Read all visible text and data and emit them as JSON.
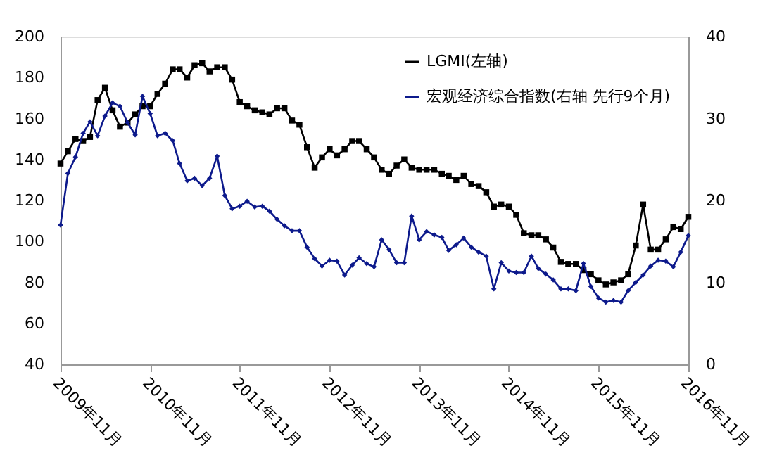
{
  "chart_data": {
    "type": "line",
    "x": [
      "2009-11",
      "2009-12",
      "2010-01",
      "2010-02",
      "2010-03",
      "2010-04",
      "2010-05",
      "2010-06",
      "2010-07",
      "2010-08",
      "2010-09",
      "2010-10",
      "2010-11",
      "2010-12",
      "2011-01",
      "2011-02",
      "2011-03",
      "2011-04",
      "2011-05",
      "2011-06",
      "2011-07",
      "2011-08",
      "2011-09",
      "2011-10",
      "2011-11",
      "2011-12",
      "2012-01",
      "2012-02",
      "2012-03",
      "2012-04",
      "2012-05",
      "2012-06",
      "2012-07",
      "2012-08",
      "2012-09",
      "2012-10",
      "2012-11",
      "2012-12",
      "2013-01",
      "2013-02",
      "2013-03",
      "2013-04",
      "2013-05",
      "2013-06",
      "2013-07",
      "2013-08",
      "2013-09",
      "2013-10",
      "2013-11",
      "2013-12",
      "2014-01",
      "2014-02",
      "2014-03",
      "2014-04",
      "2014-05",
      "2014-06",
      "2014-07",
      "2014-08",
      "2014-09",
      "2014-10",
      "2014-11",
      "2014-12",
      "2015-01",
      "2015-02",
      "2015-03",
      "2015-04",
      "2015-05",
      "2015-06",
      "2015-07",
      "2015-08",
      "2015-09",
      "2015-10",
      "2015-11",
      "2015-12",
      "2016-01",
      "2016-02",
      "2016-03",
      "2016-04",
      "2016-05",
      "2016-06",
      "2016-07",
      "2016-08",
      "2016-09",
      "2016-10",
      "2016-11"
    ],
    "series": [
      {
        "name": "LGMI(左轴)",
        "color": "#000000",
        "marker": "square",
        "values": [
          138,
          144,
          150,
          149,
          151,
          169,
          175,
          164,
          156,
          158,
          162,
          166,
          166,
          172,
          177,
          184,
          184,
          180,
          186,
          187,
          183,
          185,
          185,
          179,
          168,
          166,
          164,
          163,
          162,
          165,
          165,
          159,
          157,
          146,
          136,
          141,
          145,
          142,
          145,
          149,
          149,
          145,
          141,
          135,
          133,
          137,
          140,
          136,
          135,
          135,
          135,
          133,
          132,
          130,
          132,
          128,
          127,
          124,
          117,
          118,
          117,
          113,
          104,
          103,
          103,
          101,
          97,
          90,
          89,
          89,
          86,
          84,
          81,
          79,
          80,
          81,
          84,
          98,
          118,
          96,
          96,
          101,
          107,
          106,
          112
        ]
      },
      {
        "name": "宏观经济综合指数(右轴 先行9个月)",
        "color": "#0d1a8c",
        "marker": "diamond",
        "axis": "y2",
        "values": [
          17,
          23.3,
          25.3,
          28.2,
          29.6,
          27.9,
          30.3,
          31.9,
          31.5,
          29.5,
          28,
          32.7,
          30.6,
          27.9,
          28.2,
          27.3,
          24.5,
          22.4,
          22.7,
          21.8,
          22.7,
          25.4,
          20.6,
          19,
          19.3,
          19.9,
          19.2,
          19.3,
          18.7,
          17.7,
          16.9,
          16.3,
          16.3,
          14.3,
          12.9,
          12,
          12.7,
          12.6,
          10.9,
          12.1,
          13,
          12.3,
          11.9,
          15.2,
          14,
          12.4,
          12.4,
          18.1,
          15.2,
          16.2,
          15.8,
          15.5,
          13.9,
          14.6,
          15.4,
          14.3,
          13.7,
          13.2,
          9.2,
          12.4,
          11.4,
          11.2,
          11.2,
          13.2,
          11.7,
          11,
          10.3,
          9.2,
          9.2,
          9,
          12.3,
          9.5,
          8.1,
          7.6,
          7.8,
          7.6,
          9,
          10,
          10.9,
          12,
          12.7,
          12.6,
          11.9,
          13.7,
          15.7
        ]
      }
    ],
    "xlim": [
      "2009-11",
      "2016-11"
    ],
    "xticks": [
      {
        "value": "2009-11",
        "label": "2009年11月"
      },
      {
        "value": "2010-11",
        "label": "2010年11月"
      },
      {
        "value": "2011-11",
        "label": "2011年11月"
      },
      {
        "value": "2012-11",
        "label": "2012年11月"
      },
      {
        "value": "2013-11",
        "label": "2013年11月"
      },
      {
        "value": "2014-11",
        "label": "2014年11月"
      },
      {
        "value": "2015-11",
        "label": "2015年11月"
      },
      {
        "value": "2016-11",
        "label": "2016年11月"
      }
    ],
    "ylim": [
      40,
      200
    ],
    "yticks": [
      40,
      60,
      80,
      100,
      120,
      140,
      160,
      180,
      200
    ],
    "y2lim": [
      0,
      40
    ],
    "y2ticks": [
      0,
      10,
      20,
      30,
      40
    ],
    "grid": false,
    "legend": "top right"
  }
}
